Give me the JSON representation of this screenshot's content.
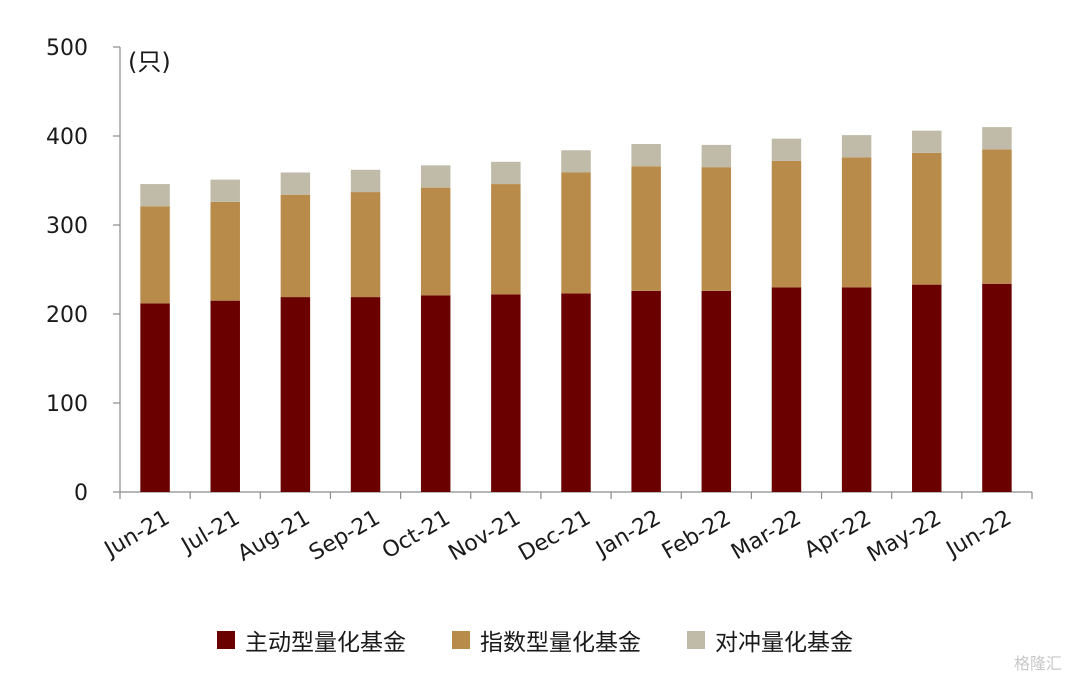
{
  "chart_data": {
    "type": "bar",
    "stacked": true,
    "unit_label": "(只)",
    "categories": [
      "Jun-21",
      "Jul-21",
      "Aug-21",
      "Sep-21",
      "Oct-21",
      "Nov-21",
      "Dec-21",
      "Jan-22",
      "Feb-22",
      "Mar-22",
      "Apr-22",
      "May-22",
      "Jun-22"
    ],
    "ylim": [
      0,
      500
    ],
    "yticks": [
      0,
      100,
      200,
      300,
      400,
      500
    ],
    "grid": false,
    "legend_position": "bottom",
    "series": [
      {
        "name": "主动型量化基金",
        "color": "#6b0000",
        "values": [
          212,
          215,
          219,
          219,
          221,
          222,
          223,
          226,
          226,
          230,
          230,
          233,
          234
        ]
      },
      {
        "name": "指数型量化基金",
        "color": "#b98b4b",
        "values": [
          109,
          111,
          115,
          118,
          121,
          124,
          136,
          140,
          139,
          142,
          146,
          148,
          151
        ]
      },
      {
        "name": "对冲量化基金",
        "color": "#bfbba8",
        "values": [
          25,
          25,
          25,
          25,
          25,
          25,
          25,
          25,
          25,
          25,
          25,
          25,
          25
        ]
      }
    ]
  },
  "watermark": "格隆汇"
}
